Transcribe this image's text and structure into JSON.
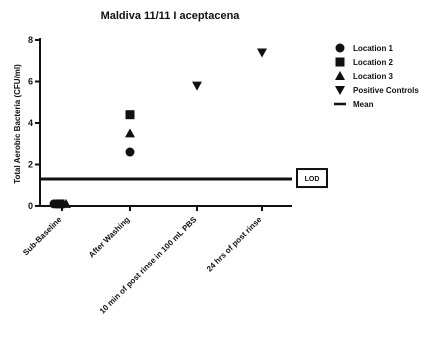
{
  "chart_data": {
    "type": "scatter",
    "title": "Maldiva 11/11 I aceptacena",
    "ylabel": "Total Aerobic Bacteria (CFU/ml)",
    "ylim": [
      0,
      8
    ],
    "yticks": [
      0,
      2,
      4,
      6,
      8
    ],
    "categories": [
      "Sub-Baseline",
      "After Washing",
      "10 min of post rinse in 100 mL PBS",
      "24 hrs of post rinse"
    ],
    "series": [
      {
        "name": "Location 1",
        "marker": "circle",
        "points": [
          {
            "x": "Sub-Baseline",
            "y": 0.1
          },
          {
            "x": "After Washing",
            "y": 2.6
          }
        ]
      },
      {
        "name": "Location 2",
        "marker": "square",
        "points": [
          {
            "x": "Sub-Baseline",
            "y": 0.1
          },
          {
            "x": "After Washing",
            "y": 4.4
          }
        ]
      },
      {
        "name": "Location 3",
        "marker": "triangle-up",
        "points": [
          {
            "x": "Sub-Baseline",
            "y": 0.1
          },
          {
            "x": "After Washing",
            "y": 3.5
          }
        ]
      },
      {
        "name": "Positive Controls",
        "marker": "triangle-down",
        "points": [
          {
            "x": "10 min of post rinse in 100 mL PBS",
            "y": 5.8
          },
          {
            "x": "24 hrs of post rinse",
            "y": 7.4
          }
        ]
      },
      {
        "name": "Mean",
        "marker": "line"
      }
    ],
    "reference_line": {
      "y": 1.3,
      "label": "LOD"
    },
    "legend_position": "right",
    "grid": false,
    "color": "#111111"
  }
}
